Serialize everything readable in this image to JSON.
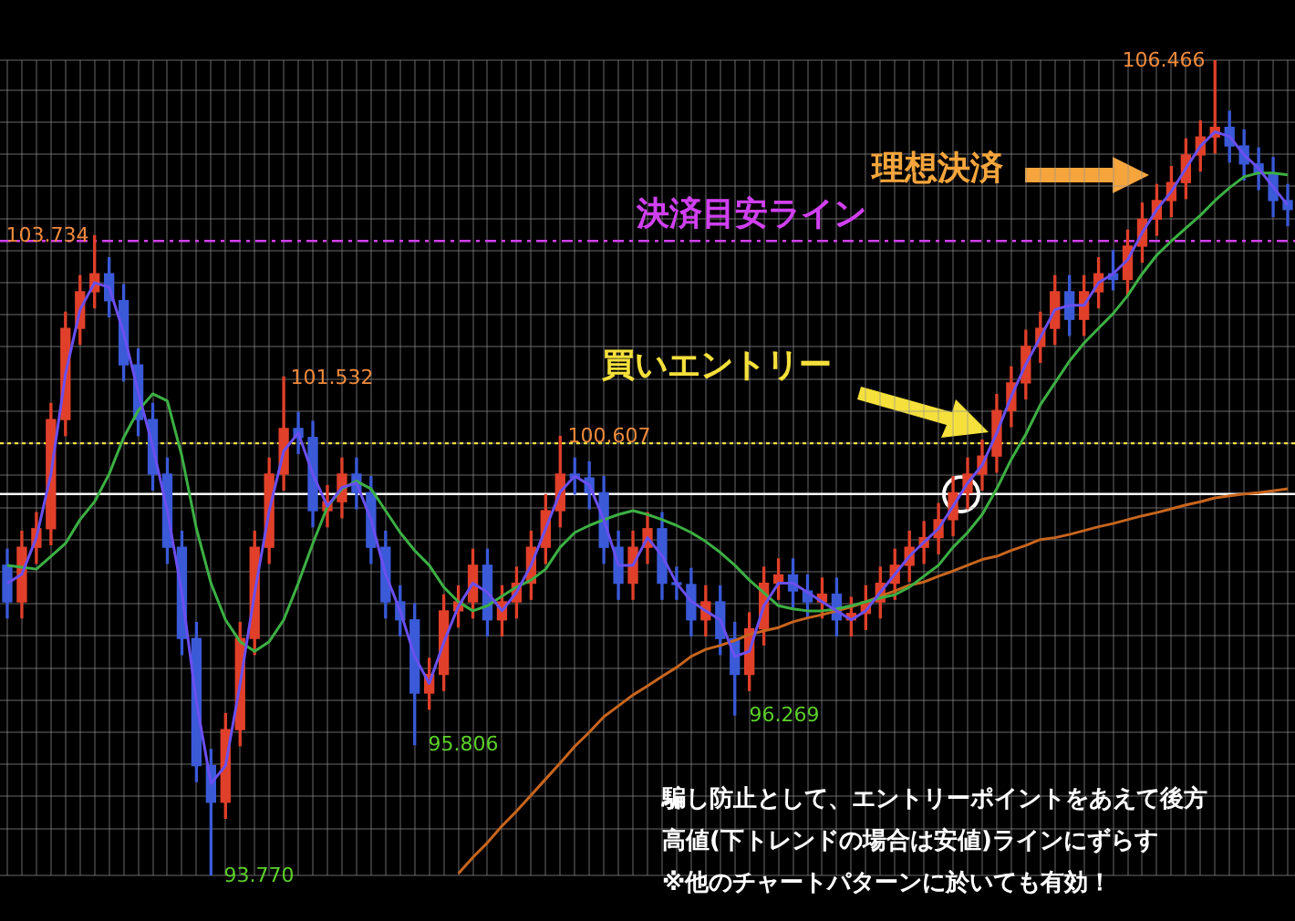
{
  "chart_data": {
    "type": "candlestick",
    "categories": [
      null,
      null,
      null,
      null,
      null,
      null,
      null,
      null,
      null,
      null,
      null,
      null,
      null,
      null,
      null,
      null,
      null,
      null,
      null,
      null,
      null,
      null,
      null,
      null,
      null,
      null,
      null,
      null,
      null,
      null,
      null,
      null,
      null,
      null,
      null,
      null,
      null,
      null,
      null,
      null,
      null,
      null,
      null,
      null,
      null,
      null,
      null,
      null,
      null,
      null,
      null,
      null,
      null,
      null,
      null,
      null,
      null,
      null,
      null,
      null,
      null,
      null,
      null,
      null,
      null,
      null,
      null,
      null,
      null,
      null,
      null,
      null,
      null,
      null,
      null,
      null,
      null,
      null,
      null,
      null,
      null,
      null,
      null,
      null,
      null,
      null,
      null,
      null,
      null
    ],
    "ohlc": [
      [
        98.6,
        98.85,
        97.78,
        98.03
      ],
      [
        98.03,
        99.13,
        97.78,
        98.88
      ],
      [
        98.88,
        99.42,
        98.63,
        99.17
      ],
      [
        99.17,
        101.12,
        98.92,
        100.87
      ],
      [
        100.87,
        102.54,
        100.62,
        102.29
      ],
      [
        102.29,
        103.11,
        102.04,
        102.86
      ],
      [
        102.86,
        103.734,
        102.61,
        103.14
      ],
      [
        103.14,
        103.39,
        102.47,
        102.72
      ],
      [
        102.72,
        102.97,
        101.47,
        101.72
      ],
      [
        101.72,
        101.97,
        100.62,
        100.87
      ],
      [
        100.87,
        101.12,
        99.77,
        100.02
      ],
      [
        100.02,
        100.27,
        98.63,
        98.88
      ],
      [
        98.88,
        99.13,
        97.21,
        97.46
      ],
      [
        97.46,
        97.71,
        95.23,
        95.48
      ],
      [
        95.48,
        95.73,
        93.77,
        94.91
      ],
      [
        94.91,
        96.29,
        94.66,
        96.04
      ],
      [
        96.04,
        97.71,
        95.79,
        97.46
      ],
      [
        97.46,
        99.13,
        97.21,
        98.88
      ],
      [
        98.88,
        100.27,
        98.63,
        100.02
      ],
      [
        100.02,
        101.532,
        99.77,
        100.73
      ],
      [
        100.73,
        100.98,
        100.34,
        100.59
      ],
      [
        100.59,
        100.84,
        99.2,
        99.45
      ],
      [
        99.45,
        99.84,
        99.2,
        99.59
      ],
      [
        99.59,
        100.27,
        99.34,
        100.02
      ],
      [
        100.02,
        100.27,
        99.48,
        99.73
      ],
      [
        99.73,
        99.98,
        98.63,
        98.88
      ],
      [
        98.88,
        99.13,
        97.78,
        98.03
      ],
      [
        98.03,
        98.28,
        97.5,
        97.75
      ],
      [
        97.75,
        98.0,
        95.806,
        96.61
      ],
      [
        96.61,
        97.15,
        96.36,
        96.9
      ],
      [
        96.9,
        98.14,
        96.65,
        97.89
      ],
      [
        97.89,
        98.28,
        97.64,
        98.03
      ],
      [
        98.03,
        98.85,
        97.78,
        98.6
      ],
      [
        98.6,
        98.85,
        97.5,
        97.75
      ],
      [
        97.75,
        98.28,
        97.5,
        98.03
      ],
      [
        98.03,
        98.57,
        97.78,
        98.32
      ],
      [
        98.32,
        99.13,
        98.07,
        98.88
      ],
      [
        98.88,
        99.7,
        98.63,
        99.45
      ],
      [
        99.45,
        100.607,
        99.2,
        100.02
      ],
      [
        100.02,
        100.27,
        99.71,
        99.96
      ],
      [
        99.96,
        100.21,
        99.48,
        99.73
      ],
      [
        99.73,
        99.98,
        98.63,
        98.88
      ],
      [
        98.88,
        99.13,
        98.07,
        98.32
      ],
      [
        98.32,
        99.13,
        98.07,
        98.88
      ],
      [
        98.88,
        99.42,
        98.63,
        99.17
      ],
      [
        99.17,
        99.42,
        98.07,
        98.32
      ],
      [
        98.32,
        98.57,
        98.07,
        98.3
      ],
      [
        98.3,
        98.55,
        97.5,
        97.75
      ],
      [
        97.75,
        98.28,
        97.5,
        98.03
      ],
      [
        98.03,
        98.28,
        97.21,
        97.46
      ],
      [
        97.46,
        97.71,
        96.269,
        96.9
      ],
      [
        96.9,
        97.86,
        96.65,
        97.61
      ],
      [
        97.61,
        98.57,
        97.36,
        98.32
      ],
      [
        98.32,
        98.7,
        98.07,
        98.45
      ],
      [
        98.45,
        98.7,
        97.95,
        98.2
      ],
      [
        98.2,
        98.45,
        97.78,
        98.03
      ],
      [
        98.03,
        98.4,
        97.78,
        98.15
      ],
      [
        98.15,
        98.4,
        97.5,
        97.75
      ],
      [
        97.75,
        98.1,
        97.5,
        97.85
      ],
      [
        97.85,
        98.28,
        97.6,
        98.03
      ],
      [
        98.03,
        98.57,
        97.78,
        98.32
      ],
      [
        98.32,
        98.85,
        98.07,
        98.6
      ],
      [
        98.6,
        99.13,
        98.35,
        98.88
      ],
      [
        98.88,
        99.28,
        98.63,
        99.03
      ],
      [
        99.03,
        99.56,
        98.78,
        99.31
      ],
      [
        99.31,
        99.98,
        99.06,
        99.73
      ],
      [
        99.73,
        100.27,
        99.48,
        100.02
      ],
      [
        100.02,
        100.55,
        99.77,
        100.3
      ],
      [
        100.3,
        101.26,
        100.05,
        101.01
      ],
      [
        101.01,
        101.69,
        100.76,
        101.44
      ],
      [
        101.44,
        102.26,
        101.19,
        102.01
      ],
      [
        102.01,
        102.54,
        101.76,
        102.29
      ],
      [
        102.29,
        103.11,
        102.04,
        102.86
      ],
      [
        102.86,
        103.11,
        102.18,
        102.43
      ],
      [
        102.43,
        103.11,
        102.18,
        102.86
      ],
      [
        102.86,
        103.39,
        102.61,
        103.14
      ],
      [
        103.14,
        103.5,
        102.89,
        103.05
      ],
      [
        103.05,
        103.82,
        102.8,
        103.57
      ],
      [
        103.57,
        104.24,
        103.32,
        103.99
      ],
      [
        103.99,
        104.53,
        103.74,
        104.28
      ],
      [
        104.28,
        104.81,
        104.03,
        104.56
      ],
      [
        104.56,
        105.24,
        104.31,
        104.99
      ],
      [
        104.99,
        105.52,
        104.74,
        105.27
      ],
      [
        105.27,
        106.466,
        105.02,
        105.42
      ],
      [
        105.42,
        105.67,
        104.88,
        105.13
      ],
      [
        105.13,
        105.38,
        104.6,
        104.85
      ],
      [
        104.85,
        105.1,
        104.45,
        104.7
      ],
      [
        104.7,
        104.95,
        104.03,
        104.28
      ],
      [
        104.28,
        104.53,
        103.89,
        104.14
      ]
    ],
    "colors": [
      "#3a5ad8",
      "#e0402a",
      "#e0402a",
      "#e0402a",
      "#e0402a",
      "#e0402a",
      "#e0402a",
      "#3a5ad8",
      "#3a5ad8",
      "#3a5ad8",
      "#3a5ad8",
      "#3a5ad8",
      "#3a5ad8",
      "#3a5ad8",
      "#3a5ad8",
      "#e0402a",
      "#e0402a",
      "#e0402a",
      "#e0402a",
      "#e0402a",
      "#3a5ad8",
      "#3a5ad8",
      "#e0402a",
      "#e0402a",
      "#3a5ad8",
      "#3a5ad8",
      "#3a5ad8",
      "#3a5ad8",
      "#3a5ad8",
      "#e0402a",
      "#e0402a",
      "#e0402a",
      "#e0402a",
      "#3a5ad8",
      "#e0402a",
      "#e0402a",
      "#e0402a",
      "#e0402a",
      "#e0402a",
      "#3a5ad8",
      "#3a5ad8",
      "#3a5ad8",
      "#3a5ad8",
      "#e0402a",
      "#e0402a",
      "#3a5ad8",
      "#3a5ad8",
      "#3a5ad8",
      "#e0402a",
      "#3a5ad8",
      "#3a5ad8",
      "#e0402a",
      "#e0402a",
      "#e0402a",
      "#3a5ad8",
      "#3a5ad8",
      "#e0402a",
      "#3a5ad8",
      "#e0402a",
      "#e0402a",
      "#e0402a",
      "#e0402a",
      "#e0402a",
      "#e0402a",
      "#e0402a",
      "#e0402a",
      "#e0402a",
      "#e0402a",
      "#e0402a",
      "#e0402a",
      "#e0402a",
      "#e0402a",
      "#e0402a",
      "#3a5ad8",
      "#e0402a",
      "#e0402a",
      "#3a5ad8",
      "#e0402a",
      "#e0402a",
      "#e0402a",
      "#e0402a",
      "#e0402a",
      "#e0402a",
      "#e0402a",
      "#3a5ad8",
      "#3a5ad8",
      "#3a5ad8",
      "#3a5ad8",
      "#3a5ad8"
    ],
    "series": [
      {
        "type": "line",
        "color": "#6a4ff0",
        "values": [
          98.32,
          98.46,
          99.03,
          100.02,
          101.58,
          102.58,
          103.0,
          102.93,
          102.22,
          101.3,
          100.45,
          99.45,
          98.17,
          96.47,
          95.2,
          95.48,
          96.75,
          98.17,
          99.45,
          100.38,
          100.66,
          100.02,
          99.52,
          99.81,
          99.88,
          99.31,
          98.46,
          97.89,
          97.18,
          96.76,
          97.4,
          97.96,
          98.32,
          98.18,
          97.89,
          98.18,
          98.6,
          99.17,
          99.74,
          99.99,
          99.85,
          99.31,
          98.6,
          98.6,
          99.03,
          98.75,
          98.32,
          98.04,
          97.89,
          97.75,
          97.18,
          97.26,
          97.97,
          98.32,
          98.32,
          98.18,
          98.03,
          97.89,
          97.75,
          97.89,
          98.18,
          98.46,
          98.74,
          98.96,
          99.17,
          99.52,
          99.88,
          100.16,
          100.66,
          101.23,
          101.73,
          102.15,
          102.58,
          102.65,
          102.65,
          103.0,
          103.14,
          103.36,
          103.78,
          104.14,
          104.42,
          104.78,
          105.13,
          105.35,
          105.28,
          104.99,
          104.78,
          104.49,
          104.21
        ]
      },
      {
        "type": "line",
        "color": "#3cb043",
        "values": [
          98.6,
          98.57,
          98.54,
          98.74,
          98.94,
          99.31,
          99.59,
          100.02,
          100.59,
          101.01,
          101.27,
          101.16,
          100.3,
          99.17,
          98.32,
          97.75,
          97.41,
          97.26,
          97.41,
          97.75,
          98.32,
          98.94,
          99.51,
          99.79,
          99.91,
          99.79,
          99.45,
          99.11,
          98.83,
          98.6,
          98.26,
          98.03,
          97.89,
          97.97,
          98.12,
          98.26,
          98.37,
          98.54,
          98.88,
          99.11,
          99.22,
          99.31,
          99.39,
          99.45,
          99.39,
          99.31,
          99.22,
          99.11,
          98.97,
          98.8,
          98.6,
          98.37,
          98.17,
          97.97,
          97.92,
          97.89,
          97.89,
          97.92,
          97.97,
          98.03,
          98.09,
          98.14,
          98.26,
          98.43,
          98.6,
          98.88,
          99.11,
          99.39,
          99.79,
          100.25,
          100.64,
          101.1,
          101.44,
          101.78,
          102.06,
          102.29,
          102.52,
          102.8,
          103.14,
          103.43,
          103.65,
          103.85,
          104.05,
          104.28,
          104.48,
          104.65,
          104.71,
          104.71,
          104.68
        ]
      },
      {
        "type": "line",
        "color": "#c8651e",
        "values": [
          null,
          null,
          null,
          null,
          null,
          null,
          null,
          null,
          null,
          null,
          null,
          null,
          null,
          null,
          null,
          null,
          null,
          null,
          null,
          null,
          null,
          null,
          null,
          null,
          null,
          null,
          null,
          null,
          null,
          null,
          null,
          93.8,
          94.05,
          94.28,
          94.54,
          94.77,
          95.02,
          95.27,
          95.52,
          95.78,
          96.0,
          96.24,
          96.41,
          96.58,
          96.72,
          96.87,
          97.01,
          97.18,
          97.29,
          97.35,
          97.43,
          97.52,
          97.58,
          97.63,
          97.72,
          97.78,
          97.83,
          97.89,
          97.95,
          98.03,
          98.12,
          98.2,
          98.29,
          98.34,
          98.43,
          98.51,
          98.6,
          98.69,
          98.74,
          98.83,
          98.91,
          99.0,
          99.03,
          99.08,
          99.14,
          99.2,
          99.25,
          99.31,
          99.37,
          99.42,
          99.48,
          99.54,
          99.59,
          99.65,
          99.68,
          99.71,
          99.73,
          99.76,
          99.79
        ]
      }
    ],
    "ref_lines": [
      {
        "axis": "y",
        "value": 103.65,
        "label": "決済目安ライン",
        "color": "#d040f0",
        "line_style": "dashed"
      },
      {
        "axis": "y",
        "value": 100.5,
        "color": "#f0e040",
        "line_style": "dotted"
      },
      {
        "axis": "y",
        "value": 99.71,
        "color": "#ffffff",
        "line_style": "solid"
      }
    ],
    "annotations": [
      "106.466",
      "103.734",
      "101.532",
      "100.607",
      "95.806",
      "96.269",
      "93.770",
      "理想決済",
      "買いエントリー",
      "騙し防止として、エントリーポイントをあえて後方",
      "高値(下トレンドの場合は安値)ラインにずらす",
      "※他のチャートパターンに於いても有効！"
    ],
    "grid": true,
    "legend": false,
    "tick_labels": false,
    "marker": "none"
  }
}
